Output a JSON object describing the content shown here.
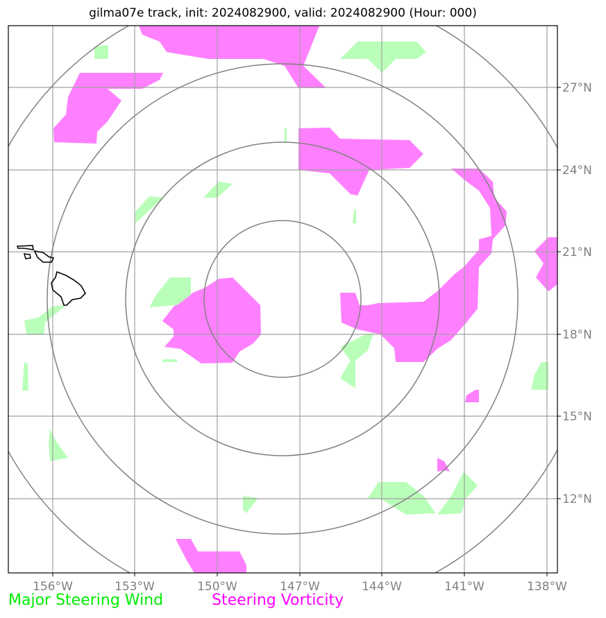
{
  "title": "gilma07e track, init: 2024082900, valid: 2024082900 (Hour: 000)",
  "map": {
    "lon_ticks": [
      "156°W",
      "153°W",
      "150°W",
      "147°W",
      "144°W",
      "141°W",
      "138°W"
    ],
    "lat_ticks": [
      "27°N",
      "24°N",
      "21°N",
      "18°N",
      "15°N",
      "12°N"
    ],
    "range_rings": 4,
    "colors": {
      "wind": "#b9ffb9",
      "vorticity": "#ff80ff",
      "grid": "#a0a0a0",
      "rings": "#808080",
      "coast": "#000000"
    }
  },
  "legend": {
    "wind_label": "Major Steering Wind",
    "vorticity_label": "Steering Vorticity",
    "wind_color": "#00ee00",
    "vorticity_color": "#ff00ff"
  }
}
